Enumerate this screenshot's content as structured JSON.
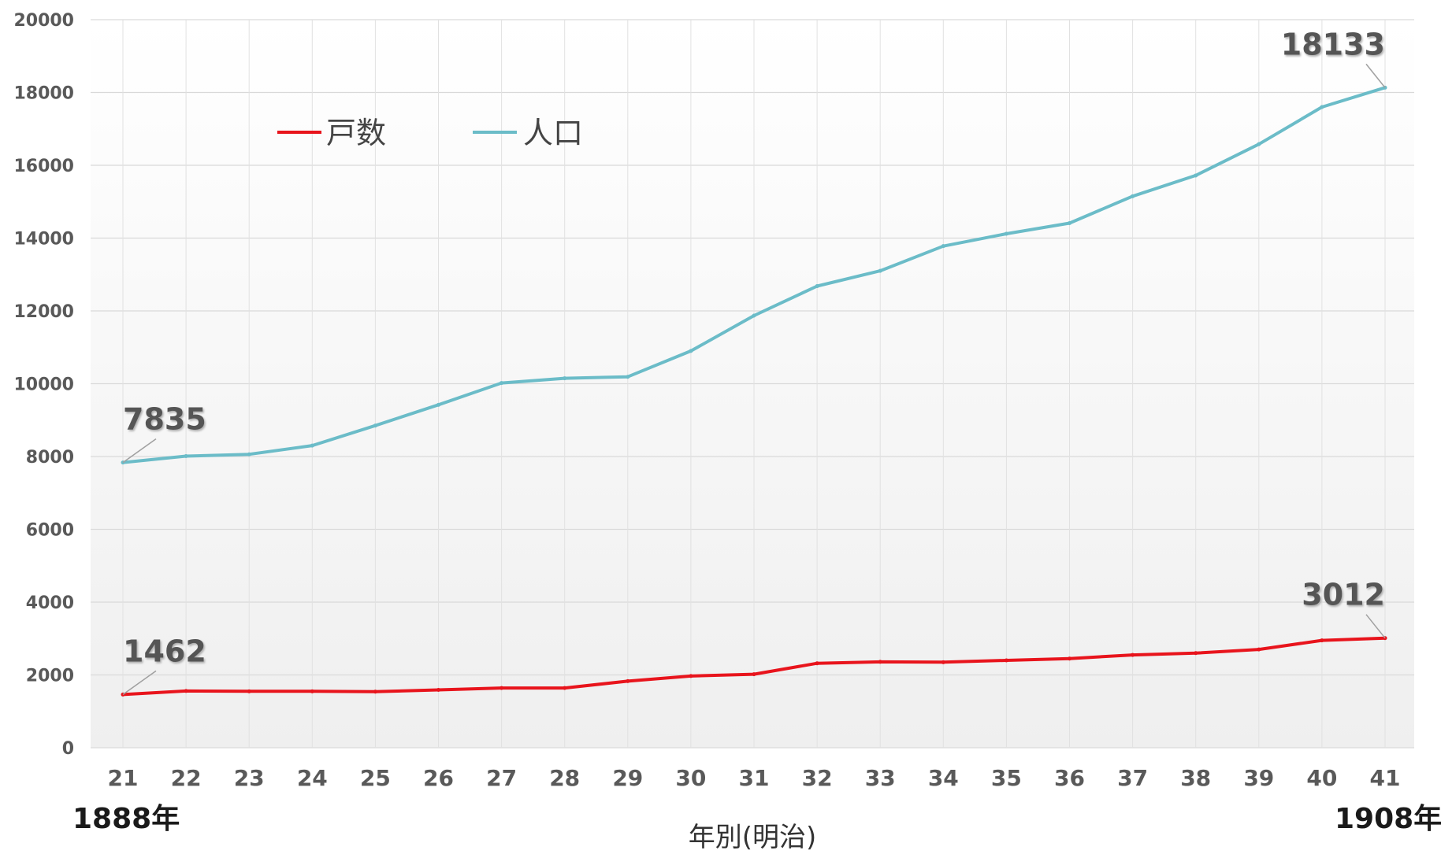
{
  "chart_data": {
    "type": "line",
    "title": "",
    "xlabel": "年別(明治)",
    "ylabel": "",
    "x": [
      "21",
      "22",
      "23",
      "24",
      "25",
      "26",
      "27",
      "28",
      "29",
      "30",
      "31",
      "32",
      "33",
      "34",
      "35",
      "36",
      "37",
      "38",
      "39",
      "40",
      "41"
    ],
    "ylim": [
      0,
      20000
    ],
    "yticks": [
      0,
      2000,
      4000,
      6000,
      8000,
      10000,
      12000,
      14000,
      16000,
      18000,
      20000
    ],
    "grid": true,
    "legend": "top-left",
    "start_year_label": "1888年",
    "end_year_label": "1908年",
    "series": [
      {
        "name": "戸数",
        "color": "#e8141c",
        "values": [
          1462,
          1560,
          1550,
          1550,
          1540,
          1590,
          1640,
          1640,
          1830,
          1970,
          2020,
          2320,
          2360,
          2350,
          2400,
          2450,
          2550,
          2600,
          2700,
          2950,
          3012
        ],
        "annotations": [
          {
            "index": 0,
            "text": "1462"
          },
          {
            "index": 20,
            "text": "3012"
          }
        ]
      },
      {
        "name": "人口",
        "color": "#6bbcc8",
        "values": [
          7835,
          8010,
          8060,
          8300,
          8850,
          9420,
          10020,
          10150,
          10190,
          10900,
          11870,
          12680,
          13100,
          13780,
          14120,
          14410,
          15150,
          15720,
          16580,
          17600,
          18133
        ],
        "annotations": [
          {
            "index": 0,
            "text": "7835"
          },
          {
            "index": 20,
            "text": "18133"
          }
        ]
      }
    ]
  }
}
